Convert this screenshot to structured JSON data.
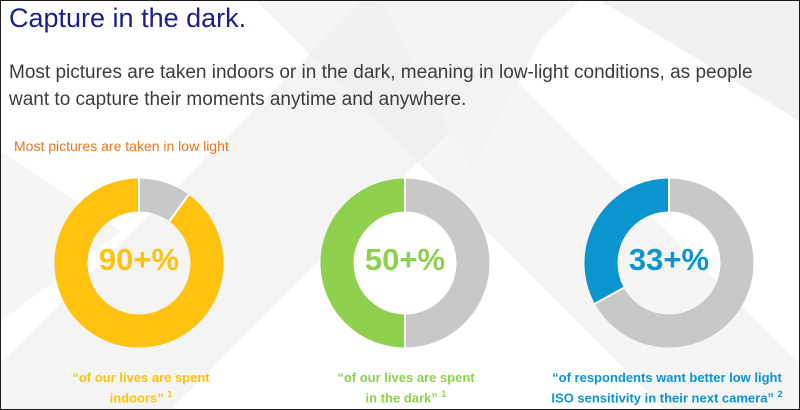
{
  "title": "Capture in the dark.",
  "description": "Most pictures are taken indoors or in the dark, meaning in low-light conditions, as people want to capture their moments anytime and anywhere.",
  "subheading": "Most pictures are taken in low light",
  "colors": {
    "title": "#1a1f8c",
    "subheading": "#e8761c",
    "track": "#c8c8c8"
  },
  "chart_data": [
    {
      "type": "pie",
      "label": "90+%",
      "value": 90,
      "color": "#ffc20e",
      "caption_line1": "“of our lives are spent",
      "caption_line2": "indoors”",
      "footnote": "1"
    },
    {
      "type": "pie",
      "label": "50+%",
      "value": 50,
      "color": "#8fd14f",
      "caption_line1": "“of our lives are spent",
      "caption_line2": "in the dark”",
      "footnote": "1"
    },
    {
      "type": "pie",
      "label": "33+%",
      "value": 33,
      "color": "#0b95d0",
      "caption_line1": "“of respondents want better low light",
      "caption_line2": "ISO sensitivity in their next camera”",
      "footnote": "2"
    }
  ]
}
